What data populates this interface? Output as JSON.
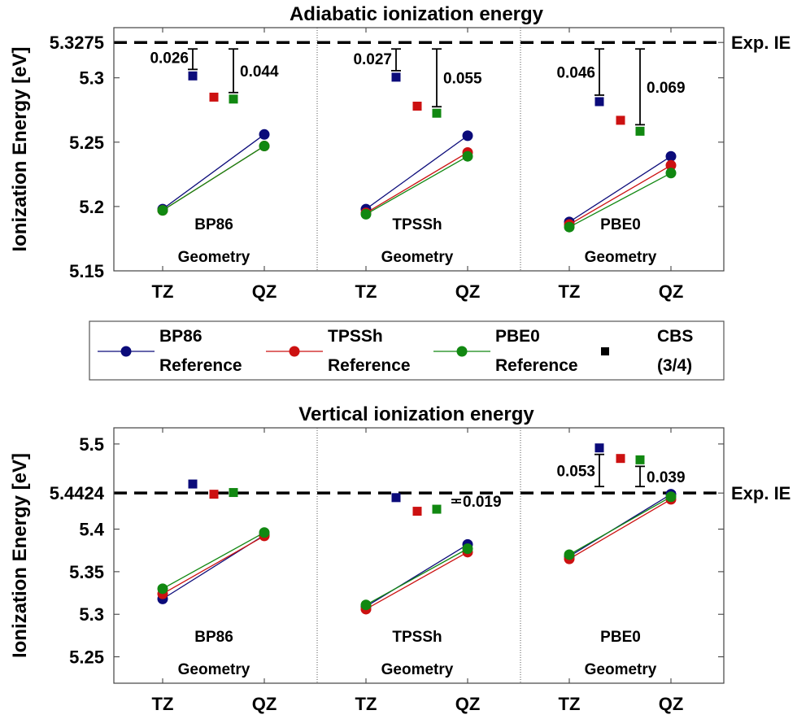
{
  "chart_data": [
    {
      "type": "scatter",
      "title": "Adiabatic ionization energy",
      "ylabel": "Ionization Energy [eV]",
      "ylim": [
        5.15,
        5.339
      ],
      "yticks": [
        "5.15",
        "5.2",
        "5.25",
        "5.3",
        "5.3275"
      ],
      "ytick_values": [
        5.15,
        5.2,
        5.25,
        5.3,
        5.3275
      ],
      "reference_line": {
        "value": 5.3275,
        "label": "Exp. IE",
        "style": "dashed"
      },
      "grid": false,
      "panels": [
        {
          "label": [
            "BP86",
            "Geometry"
          ],
          "xticks": [
            "TZ",
            "QZ"
          ],
          "series": [
            {
              "name": "BP86 Reference",
              "TZ": 5.198,
              "QZ": 5.256,
              "CBS": 5.3015
            },
            {
              "name": "TPSSh Reference",
              "TZ": 5.197,
              "QZ": 5.247,
              "CBS": 5.285
            },
            {
              "name": "PBE0 Reference",
              "TZ": 5.197,
              "QZ": 5.247,
              "CBS": 5.2835
            }
          ],
          "annotations": [
            {
              "series": 0,
              "text": "0.026",
              "side": "left"
            },
            {
              "series": 2,
              "text": "0.044",
              "side": "right"
            }
          ]
        },
        {
          "label": [
            "TPSSh",
            "Geometry"
          ],
          "xticks": [
            "TZ",
            "QZ"
          ],
          "series": [
            {
              "name": "BP86 Reference",
              "TZ": 5.198,
              "QZ": 5.255,
              "CBS": 5.3005
            },
            {
              "name": "TPSSh Reference",
              "TZ": 5.195,
              "QZ": 5.242,
              "CBS": 5.278
            },
            {
              "name": "PBE0 Reference",
              "TZ": 5.194,
              "QZ": 5.239,
              "CBS": 5.2725
            }
          ],
          "annotations": [
            {
              "series": 0,
              "text": "0.027",
              "side": "left"
            },
            {
              "series": 2,
              "text": "0.055",
              "side": "right"
            }
          ]
        },
        {
          "label": [
            "PBE0",
            "Geometry"
          ],
          "xticks": [
            "TZ",
            "QZ"
          ],
          "series": [
            {
              "name": "BP86 Reference",
              "TZ": 5.188,
              "QZ": 5.239,
              "CBS": 5.2815
            },
            {
              "name": "TPSSh Reference",
              "TZ": 5.186,
              "QZ": 5.232,
              "CBS": 5.267
            },
            {
              "name": "PBE0 Reference",
              "TZ": 5.184,
              "QZ": 5.226,
              "CBS": 5.2585
            }
          ],
          "annotations": [
            {
              "series": 0,
              "text": "0.046",
              "side": "left"
            },
            {
              "series": 2,
              "text": "0.069",
              "side": "right"
            }
          ]
        }
      ]
    },
    {
      "type": "scatter",
      "title": "Vertical ionization energy",
      "ylabel": "Ionization Energy [eV]",
      "ylim": [
        5.219,
        5.519
      ],
      "yticks": [
        "5.25",
        "5.3",
        "5.35",
        "5.4",
        "5.4424",
        "5.5"
      ],
      "ytick_values": [
        5.25,
        5.3,
        5.35,
        5.4,
        5.4424,
        5.5
      ],
      "reference_line": {
        "value": 5.4424,
        "label": "Exp. IE",
        "style": "dashed"
      },
      "grid": false,
      "panels": [
        {
          "label": [
            "BP86",
            "Geometry"
          ],
          "xticks": [
            "TZ",
            "QZ"
          ],
          "series": [
            {
              "name": "BP86 Reference",
              "TZ": 5.318,
              "QZ": 5.393,
              "CBS": 5.453
            },
            {
              "name": "TPSSh Reference",
              "TZ": 5.324,
              "QZ": 5.392,
              "CBS": 5.441
            },
            {
              "name": "PBE0 Reference",
              "TZ": 5.33,
              "QZ": 5.396,
              "CBS": 5.443
            }
          ],
          "annotations": []
        },
        {
          "label": [
            "TPSSh",
            "Geometry"
          ],
          "xticks": [
            "TZ",
            "QZ"
          ],
          "series": [
            {
              "name": "BP86 Reference",
              "TZ": 5.309,
              "QZ": 5.382,
              "CBS": 5.437
            },
            {
              "name": "TPSSh Reference",
              "TZ": 5.306,
              "QZ": 5.373,
              "CBS": 5.421
            },
            {
              "name": "PBE0 Reference",
              "TZ": 5.311,
              "QZ": 5.377,
              "CBS": 5.4234
            }
          ],
          "annotations": [
            {
              "series": 2,
              "text": "0.019",
              "side": "right"
            }
          ]
        },
        {
          "label": [
            "PBE0",
            "Geometry"
          ],
          "xticks": [
            "TZ",
            "QZ"
          ],
          "series": [
            {
              "name": "BP86 Reference",
              "TZ": 5.368,
              "QZ": 5.441,
              "CBS": 5.4954
            },
            {
              "name": "TPSSh Reference",
              "TZ": 5.365,
              "QZ": 5.435,
              "CBS": 5.483
            },
            {
              "name": "PBE0 Reference",
              "TZ": 5.37,
              "QZ": 5.438,
              "CBS": 5.4814
            }
          ],
          "annotations": [
            {
              "series": 0,
              "text": "0.053",
              "side": "left"
            },
            {
              "series": 2,
              "text": "0.039",
              "side": "right"
            }
          ]
        }
      ]
    }
  ],
  "legend": {
    "placement": "between-plots",
    "items": [
      {
        "line1": "BP86",
        "line2": "Reference",
        "color": "#0b0b7a",
        "marker": "circle-line"
      },
      {
        "line1": "TPSSh",
        "line2": "Reference",
        "color": "#cc1111",
        "marker": "circle-line"
      },
      {
        "line1": "PBE0",
        "line2": "Reference",
        "color": "#118811",
        "marker": "circle-line"
      },
      {
        "line1": "CBS",
        "line2": "(3/4)",
        "color": "#000000",
        "marker": "square"
      }
    ]
  },
  "colors": [
    "#0b0b7a",
    "#cc1111",
    "#118811"
  ]
}
